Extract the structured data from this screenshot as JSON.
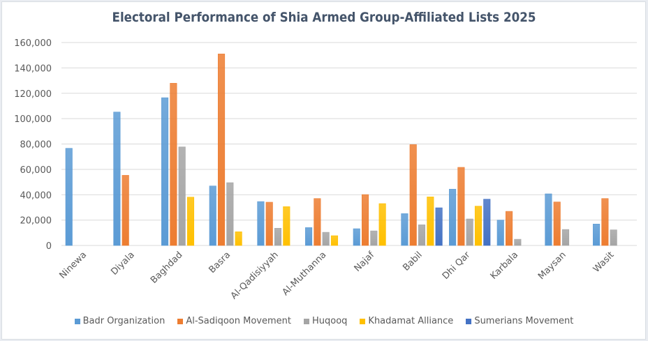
{
  "chart_data": {
    "type": "bar",
    "title": "Electoral Performance of Shia Armed Group-Affiliated Lists 2025",
    "xlabel": "",
    "ylabel": "",
    "ylim": [
      0,
      160000
    ],
    "yticks": [
      0,
      20000,
      40000,
      60000,
      80000,
      100000,
      120000,
      140000,
      160000
    ],
    "ytick_labels": [
      "0",
      "20,000",
      "40,000",
      "60,000",
      "80,000",
      "100,000",
      "120,000",
      "140,000",
      "160,000"
    ],
    "grid": true,
    "legend_position": "bottom",
    "categories": [
      "Ninewa",
      "Diyala",
      "Baghdad",
      "Basra",
      "Al-Qadisiyyah",
      "Al-Muthanna",
      "Najaf",
      "Babil",
      "Dhi Qar",
      "Karbala",
      "Maysan",
      "Wasit"
    ],
    "series": [
      {
        "name": "Badr Organization",
        "color": "#5b9bd5",
        "values": [
          76600,
          105200,
          116500,
          46900,
          34600,
          14100,
          13200,
          25100,
          44400,
          20000,
          40700,
          16900
        ]
      },
      {
        "name": "Al-Sadiqoon Movement",
        "color": "#ed7d31",
        "values": [
          null,
          55300,
          127900,
          151000,
          34100,
          37000,
          40100,
          79500,
          61600,
          26900,
          34300,
          37000
        ]
      },
      {
        "name": "Huqooq",
        "color": "#a5a5a5",
        "values": [
          null,
          null,
          77700,
          49500,
          13600,
          10400,
          11500,
          16300,
          20900,
          4900,
          12600,
          12300
        ]
      },
      {
        "name": "Khadamat Alliance",
        "color": "#ffc000",
        "values": [
          null,
          null,
          38100,
          10800,
          30600,
          7700,
          33000,
          38300,
          31000,
          null,
          null,
          null
        ]
      },
      {
        "name": "Sumerians Movement",
        "color": "#4472c4",
        "values": [
          null,
          null,
          null,
          null,
          null,
          null,
          null,
          29700,
          36500,
          null,
          null,
          null
        ]
      }
    ]
  }
}
